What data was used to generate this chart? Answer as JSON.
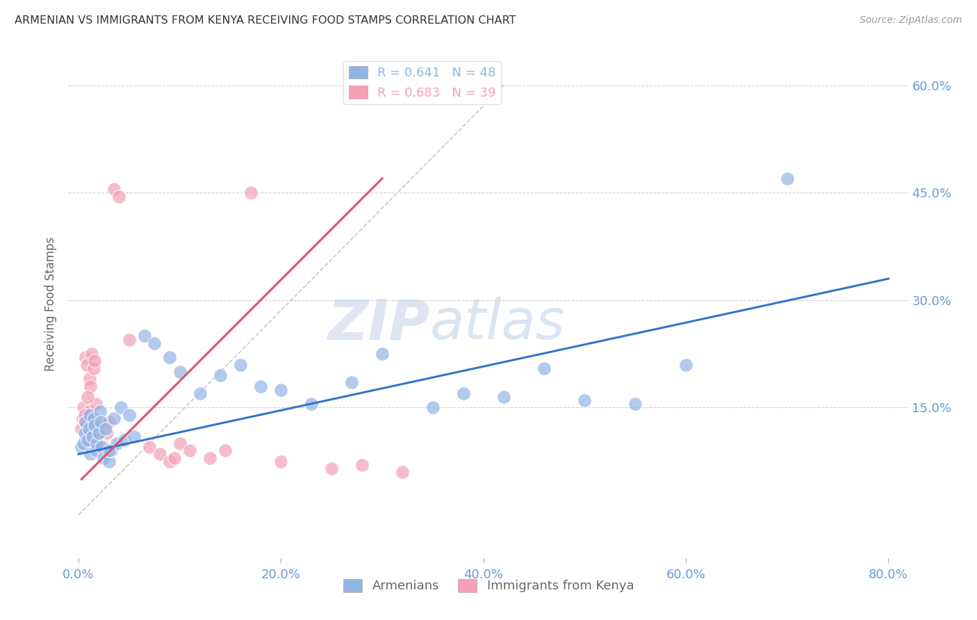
{
  "title": "ARMENIAN VS IMMIGRANTS FROM KENYA RECEIVING FOOD STAMPS CORRELATION CHART",
  "source": "Source: ZipAtlas.com",
  "ylabel": "Receiving Food Stamps",
  "xlabel": "",
  "xlim": [
    -1.0,
    82.0
  ],
  "ylim": [
    -6.0,
    65.0
  ],
  "ytick_labels": [
    "15.0%",
    "30.0%",
    "45.0%",
    "60.0%"
  ],
  "ytick_values": [
    15.0,
    30.0,
    45.0,
    60.0
  ],
  "xtick_labels": [
    "0.0%",
    "20.0%",
    "40.0%",
    "60.0%",
    "80.0%"
  ],
  "xtick_values": [
    0.0,
    20.0,
    40.0,
    60.0,
    80.0
  ],
  "armenians_color": "#92b4e3",
  "kenya_color": "#f4a0b5",
  "armenians_R": 0.641,
  "armenians_N": 48,
  "kenya_R": 0.683,
  "kenya_N": 39,
  "legend_label_armenians": "Armenians",
  "legend_label_kenya": "Immigrants from Kenya",
  "watermark_zip": "ZIP",
  "watermark_atlas": "atlas",
  "background_color": "#ffffff",
  "grid_color": "#d0d0d0",
  "title_color": "#333333",
  "axis_label_color": "#6699dd",
  "armenians_x": [
    0.3,
    0.5,
    0.6,
    0.7,
    0.9,
    1.0,
    1.1,
    1.2,
    1.4,
    1.5,
    1.6,
    1.7,
    1.8,
    2.0,
    2.1,
    2.2,
    2.3,
    2.5,
    2.7,
    3.0,
    3.2,
    3.5,
    3.8,
    4.2,
    4.5,
    5.0,
    5.5,
    6.5,
    7.5,
    9.0,
    10.0,
    12.0,
    14.0,
    16.0,
    18.0,
    20.0,
    23.0,
    27.0,
    30.0,
    35.0,
    38.0,
    42.0,
    46.0,
    50.0,
    55.0,
    60.0,
    70.0,
    3.0
  ],
  "armenians_y": [
    9.5,
    10.0,
    11.5,
    13.0,
    10.5,
    12.0,
    14.0,
    8.5,
    11.0,
    13.5,
    12.5,
    9.0,
    10.0,
    11.5,
    14.5,
    13.0,
    9.5,
    8.0,
    12.0,
    7.5,
    9.0,
    13.5,
    10.0,
    15.0,
    10.5,
    14.0,
    11.0,
    25.0,
    24.0,
    22.0,
    20.0,
    17.0,
    19.5,
    21.0,
    18.0,
    17.5,
    15.5,
    18.5,
    22.5,
    15.0,
    17.0,
    16.5,
    20.5,
    16.0,
    15.5,
    21.0,
    47.0,
    9.0
  ],
  "kenya_x": [
    0.3,
    0.4,
    0.5,
    0.6,
    0.7,
    0.8,
    1.0,
    1.1,
    1.2,
    1.3,
    1.5,
    1.6,
    1.7,
    1.8,
    2.0,
    2.2,
    2.5,
    2.8,
    3.0,
    3.5,
    4.0,
    5.0,
    7.0,
    8.0,
    9.0,
    10.0,
    11.0,
    13.0,
    14.5,
    9.5,
    17.0,
    20.0,
    25.0,
    28.0,
    32.0,
    0.6,
    0.9,
    1.4,
    2.1
  ],
  "kenya_y": [
    12.0,
    13.5,
    15.0,
    13.0,
    22.0,
    21.0,
    14.5,
    19.0,
    18.0,
    22.5,
    20.5,
    21.5,
    15.5,
    13.0,
    12.5,
    11.0,
    9.5,
    11.5,
    13.0,
    45.5,
    44.5,
    24.5,
    9.5,
    8.5,
    7.5,
    10.0,
    9.0,
    8.0,
    9.0,
    8.0,
    45.0,
    7.5,
    6.5,
    7.0,
    6.0,
    14.0,
    16.5,
    12.5,
    11.5
  ],
  "blue_line_x": [
    0.0,
    80.0
  ],
  "blue_line_y": [
    8.5,
    33.0
  ],
  "pink_line_x": [
    0.3,
    30.0
  ],
  "pink_line_y": [
    5.0,
    47.0
  ],
  "diag_line_x": [
    0.0,
    42.0
  ],
  "diag_line_y": [
    0.0,
    60.0
  ]
}
